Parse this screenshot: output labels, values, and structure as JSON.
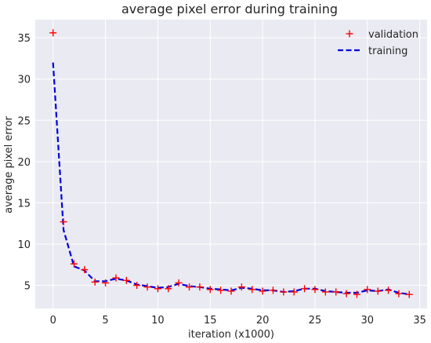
{
  "chart_data": {
    "type": "line",
    "title": "average pixel error during training",
    "xlabel": "iteration (x1000)",
    "ylabel": "average pixel error",
    "xlim": [
      -1.7,
      35.7
    ],
    "ylim": [
      2.2,
      37.2
    ],
    "xticks": [
      0,
      5,
      10,
      15,
      20,
      25,
      30,
      35
    ],
    "yticks": [
      5,
      10,
      15,
      20,
      25,
      30,
      35
    ],
    "grid": true,
    "legend_position": "top-right",
    "colors": {
      "background": "#eaeaf2",
      "grid": "#ffffff",
      "validation": "#ff0000",
      "training": "#0000dd"
    },
    "series": [
      {
        "name": "validation",
        "style": "marker-plus",
        "x": [
          0,
          1,
          2,
          3,
          4,
          5,
          6,
          7,
          8,
          9,
          10,
          11,
          12,
          13,
          14,
          15,
          16,
          17,
          18,
          19,
          20,
          21,
          22,
          23,
          24,
          25,
          26,
          27,
          28,
          29,
          30,
          31,
          32,
          33,
          34
        ],
        "y": [
          35.6,
          12.7,
          7.6,
          6.9,
          5.4,
          5.3,
          5.9,
          5.6,
          5.0,
          4.8,
          4.6,
          4.6,
          5.3,
          4.8,
          4.8,
          4.5,
          4.4,
          4.3,
          4.8,
          4.5,
          4.3,
          4.4,
          4.2,
          4.2,
          4.6,
          4.5,
          4.2,
          4.2,
          4.0,
          3.9,
          4.5,
          4.3,
          4.4,
          4.0,
          3.9
        ]
      },
      {
        "name": "training",
        "style": "dashed-line",
        "x": [
          0,
          1,
          2,
          3,
          4,
          5,
          6,
          7,
          8,
          9,
          10,
          11,
          12,
          13,
          14,
          15,
          16,
          17,
          18,
          19,
          20,
          21,
          22,
          23,
          24,
          25,
          26,
          27,
          28,
          29,
          30,
          31,
          32,
          33,
          34
        ],
        "y": [
          32.0,
          11.7,
          7.3,
          6.8,
          5.5,
          5.5,
          5.8,
          5.6,
          5.1,
          4.9,
          4.7,
          4.8,
          5.2,
          4.9,
          4.8,
          4.6,
          4.5,
          4.4,
          4.7,
          4.6,
          4.4,
          4.4,
          4.2,
          4.3,
          4.6,
          4.6,
          4.3,
          4.2,
          4.1,
          4.1,
          4.4,
          4.3,
          4.5,
          4.1,
          3.9
        ]
      }
    ]
  }
}
